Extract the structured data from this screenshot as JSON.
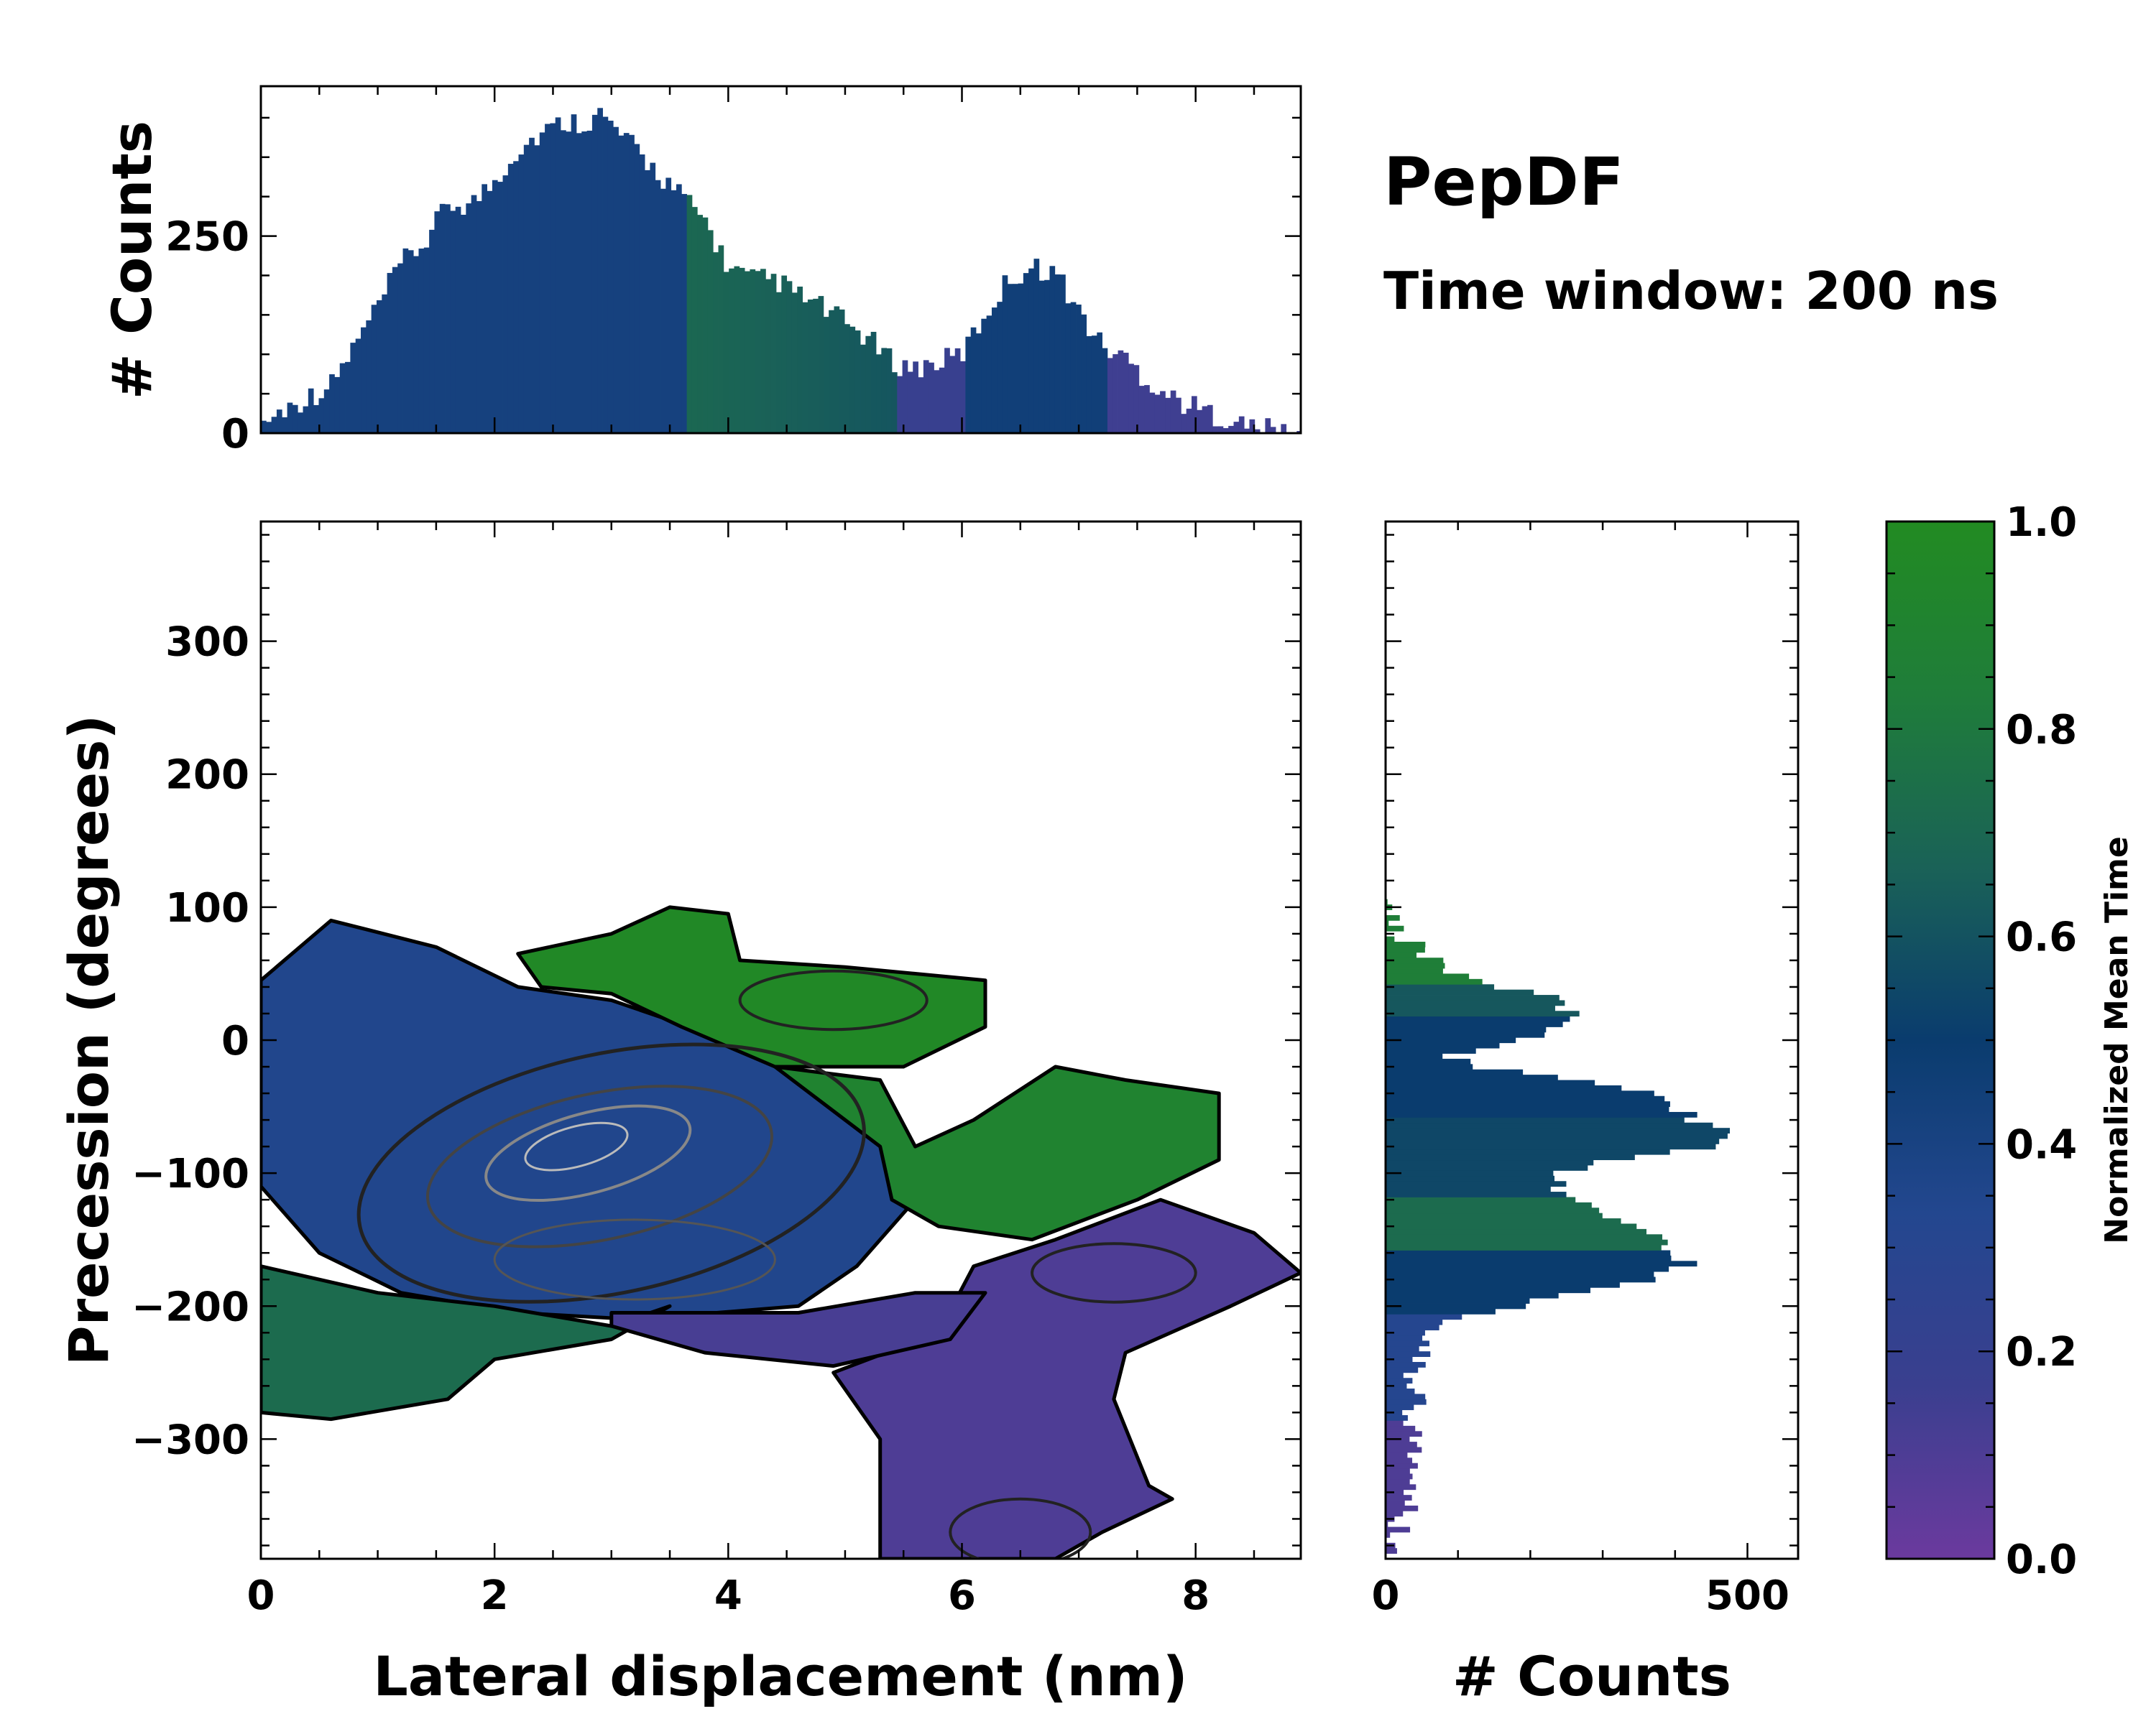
{
  "chart_data": [
    {
      "panel": "main",
      "type": "heatmap",
      "xlabel": "Lateral displacement (nm)",
      "ylabel": "Precession (degrees)",
      "xlim": [
        0,
        8.9
      ],
      "ylim": [
        -390,
        390
      ],
      "xticks": [
        0,
        2,
        4,
        6,
        8
      ],
      "yticks": [
        300,
        200,
        100,
        0,
        -100,
        -200,
        -300
      ],
      "ytick_labels": [
        "300",
        "200",
        "100",
        "0",
        "−100",
        "−200",
        "−300"
      ],
      "color_value": "Normalized Mean Time",
      "regions": [
        {
          "name": "blue-core",
          "time": 0.35,
          "polygon": [
            [
              0,
              45
            ],
            [
              0.6,
              90
            ],
            [
              1.5,
              70
            ],
            [
              2.2,
              40
            ],
            [
              3,
              30
            ],
            [
              4,
              0
            ],
            [
              4.6,
              -20
            ],
            [
              5.4,
              -80
            ],
            [
              5.6,
              -120
            ],
            [
              5.1,
              -170
            ],
            [
              4.6,
              -200
            ],
            [
              3.2,
              -210
            ],
            [
              2.2,
              -205
            ],
            [
              1.2,
              -190
            ],
            [
              0.5,
              -160
            ],
            [
              0,
              -110
            ]
          ]
        },
        {
          "name": "top-green",
          "time": 0.97,
          "polygon": [
            [
              2.2,
              65
            ],
            [
              3,
              80
            ],
            [
              3.5,
              100
            ],
            [
              4.0,
              95
            ],
            [
              4.1,
              60
            ],
            [
              5.0,
              55
            ],
            [
              6.2,
              45
            ],
            [
              6.2,
              10
            ],
            [
              5.5,
              -20
            ],
            [
              4.4,
              -20
            ],
            [
              3.6,
              10
            ],
            [
              3.0,
              35
            ],
            [
              2.4,
              40
            ]
          ]
        },
        {
          "name": "center-green",
          "time": 0.9,
          "polygon": [
            [
              4.4,
              -20
            ],
            [
              5.3,
              -30
            ],
            [
              5.6,
              -80
            ],
            [
              6.1,
              -60
            ],
            [
              6.8,
              -20
            ],
            [
              7.4,
              -30
            ],
            [
              8.2,
              -40
            ],
            [
              8.2,
              -90
            ],
            [
              7.5,
              -120
            ],
            [
              6.6,
              -150
            ],
            [
              5.8,
              -140
            ],
            [
              5.4,
              -120
            ],
            [
              5.3,
              -80
            ]
          ]
        },
        {
          "name": "left-green",
          "time": 0.72,
          "polygon": [
            [
              0,
              -170
            ],
            [
              1,
              -190
            ],
            [
              2,
              -200
            ],
            [
              3,
              -215
            ],
            [
              3.5,
              -200
            ],
            [
              3,
              -225
            ],
            [
              2,
              -240
            ],
            [
              1.6,
              -270
            ],
            [
              0.6,
              -285
            ],
            [
              0,
              -280
            ]
          ]
        },
        {
          "name": "purple-right",
          "time": 0.1,
          "polygon": [
            [
              6.1,
              -170
            ],
            [
              6.8,
              -150
            ],
            [
              7.7,
              -120
            ],
            [
              8.5,
              -145
            ],
            [
              8.9,
              -175
            ],
            [
              8.3,
              -200
            ],
            [
              7.4,
              -235
            ],
            [
              7.3,
              -270
            ],
            [
              7.6,
              -335
            ],
            [
              7.8,
              -345
            ],
            [
              7.2,
              -370
            ],
            [
              6.8,
              -390
            ],
            [
              5.3,
              -390
            ],
            [
              5.3,
              -300
            ],
            [
              4.9,
              -250
            ],
            [
              5.8,
              -220
            ]
          ]
        },
        {
          "name": "purple-band",
          "time": 0.12,
          "polygon": [
            [
              3.0,
              -205
            ],
            [
              4.6,
              -205
            ],
            [
              5.6,
              -190
            ],
            [
              6.2,
              -190
            ],
            [
              5.9,
              -225
            ],
            [
              4.9,
              -245
            ],
            [
              3.8,
              -235
            ],
            [
              3.0,
              -215
            ]
          ]
        }
      ]
    },
    {
      "panel": "top",
      "type": "bar",
      "ylabel": "# Counts",
      "yticks": [
        0,
        250
      ],
      "ylim": [
        0,
        440
      ],
      "xlim": [
        0,
        8.9
      ],
      "anchors_x": [
        0,
        0.2,
        0.4,
        0.6,
        0.8,
        1.0,
        1.2,
        1.4,
        1.6,
        1.8,
        2.0,
        2.2,
        2.4,
        2.6,
        2.8,
        2.9,
        3.0,
        3.2,
        3.4,
        3.6,
        3.8,
        4.0,
        4.2,
        4.4,
        4.6,
        4.8,
        5.0,
        5.2,
        5.4,
        5.6,
        5.8,
        6.0,
        6.2,
        6.4,
        6.6,
        6.8,
        7.0,
        7.2,
        7.4,
        7.6,
        7.8,
        8.0,
        8.2,
        8.4,
        8.6,
        8.8,
        8.9
      ],
      "anchors_y": [
        12,
        30,
        45,
        60,
        110,
        160,
        215,
        240,
        290,
        290,
        320,
        360,
        380,
        395,
        395,
        405,
        390,
        360,
        330,
        300,
        270,
        210,
        195,
        195,
        175,
        160,
        140,
        120,
        90,
        82,
        90,
        100,
        150,
        195,
        210,
        205,
        155,
        110,
        95,
        65,
        45,
        32,
        22,
        10,
        5,
        2,
        0
      ],
      "bin_width": 0.045
    },
    {
      "panel": "right",
      "type": "bar",
      "orientation": "horizontal",
      "xlabel": "# Counts",
      "xticks": [
        0,
        500
      ],
      "xlim": [
        0,
        570
      ],
      "ylim": [
        -390,
        390
      ],
      "anchors_y": [
        100,
        80,
        60,
        40,
        30,
        20,
        10,
        0,
        -10,
        -20,
        -30,
        -40,
        -50,
        -60,
        -70,
        -80,
        -90,
        -100,
        -110,
        -120,
        -130,
        -140,
        -150,
        -160,
        -170,
        -180,
        -190,
        -200,
        -210,
        -220,
        -240,
        -260,
        -280,
        -300,
        -320,
        -340,
        -360,
        -380,
        -390
      ],
      "anchors_c": [
        0,
        20,
        60,
        150,
        240,
        250,
        240,
        180,
        90,
        120,
        250,
        360,
        400,
        430,
        480,
        440,
        300,
        250,
        240,
        250,
        290,
        340,
        380,
        410,
        420,
        360,
        250,
        190,
        100,
        70,
        45,
        40,
        35,
        30,
        30,
        32,
        25,
        15,
        0
      ],
      "bin_height": 4
    },
    {
      "panel": "colorbar",
      "type": "colorbar",
      "label": "Normalized Mean Time",
      "range": [
        0.0,
        1.0
      ],
      "ticks": [
        "0.0",
        "0.2",
        "0.4",
        "0.6",
        "0.8",
        "1.0"
      ],
      "stops": [
        "#6b3a9e",
        "#3a3f8f",
        "#23478f",
        "#0a3c6e",
        "#1a6257",
        "#1f7d3a",
        "#228b22"
      ]
    }
  ],
  "annotations": {
    "title": "PepDF",
    "subtitle": "Time window: 200 ns"
  }
}
